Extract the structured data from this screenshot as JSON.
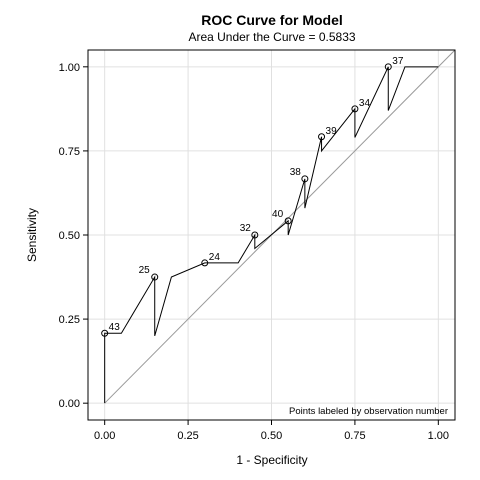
{
  "colors": {
    "background": "#ffffff",
    "curve": "#000000",
    "diagonal": "#9a9a9a",
    "grid": "#e0e0e0",
    "frame": "#000000"
  },
  "chart_data": {
    "type": "line",
    "title": "ROC Curve for Model",
    "subtitle": "Area Under the Curve = 0.5833",
    "xlabel": "1 - Specificity",
    "ylabel": "Sensitivity",
    "xlim": [
      -0.05,
      1.05
    ],
    "ylim": [
      -0.05,
      1.05
    ],
    "x_ticks": [
      0.0,
      0.25,
      0.5,
      0.75,
      1.0
    ],
    "x_tick_labels": [
      "0.00",
      "0.25",
      "0.50",
      "0.75",
      "1.00"
    ],
    "y_ticks": [
      0.0,
      0.25,
      0.5,
      0.75,
      1.0
    ],
    "y_tick_labels": [
      "0.00",
      "0.25",
      "0.50",
      "0.75",
      "1.00"
    ],
    "grid": true,
    "diagonal_reference": true,
    "curve": [
      [
        0.0,
        0.0
      ],
      [
        0.0,
        0.208
      ],
      [
        0.05,
        0.208
      ],
      [
        0.15,
        0.375
      ],
      [
        0.15,
        0.2
      ],
      [
        0.2,
        0.375
      ],
      [
        0.3,
        0.417
      ],
      [
        0.4,
        0.417
      ],
      [
        0.45,
        0.5
      ],
      [
        0.45,
        0.46
      ],
      [
        0.55,
        0.542
      ],
      [
        0.55,
        0.5
      ],
      [
        0.6,
        0.667
      ],
      [
        0.6,
        0.58
      ],
      [
        0.65,
        0.792
      ],
      [
        0.65,
        0.75
      ],
      [
        0.75,
        0.875
      ],
      [
        0.75,
        0.79
      ],
      [
        0.85,
        1.0
      ],
      [
        0.85,
        0.87
      ],
      [
        0.9,
        1.0
      ],
      [
        1.0,
        1.0
      ]
    ],
    "labeled_points": [
      {
        "label": "43",
        "x": 0.0,
        "y": 0.208
      },
      {
        "label": "25",
        "x": 0.15,
        "y": 0.375
      },
      {
        "label": "24",
        "x": 0.3,
        "y": 0.417
      },
      {
        "label": "32",
        "x": 0.45,
        "y": 0.5
      },
      {
        "label": "40",
        "x": 0.55,
        "y": 0.542
      },
      {
        "label": "38",
        "x": 0.6,
        "y": 0.667
      },
      {
        "label": "39",
        "x": 0.65,
        "y": 0.792
      },
      {
        "label": "34",
        "x": 0.75,
        "y": 0.875
      },
      {
        "label": "37",
        "x": 0.85,
        "y": 1.0
      }
    ],
    "note": "Points labeled by observation number"
  }
}
